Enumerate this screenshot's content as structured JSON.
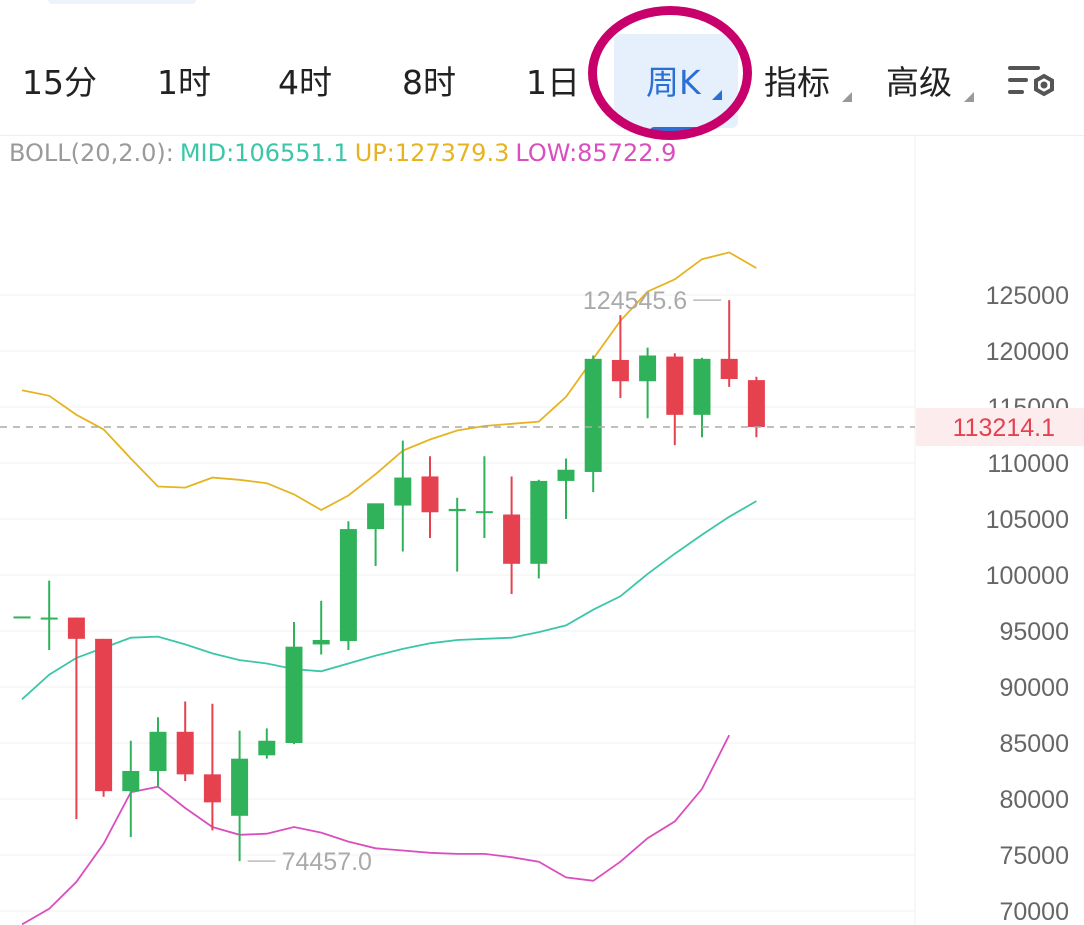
{
  "timeframes": {
    "items": [
      {
        "label": "15分"
      },
      {
        "label": "1时"
      },
      {
        "label": "4时"
      },
      {
        "label": "8时"
      },
      {
        "label": "1日"
      },
      {
        "label": "周K"
      }
    ],
    "indicators_label": "指标",
    "advanced_label": "高级"
  },
  "colors": {
    "up": "#2fb25a",
    "down": "#e5414f",
    "mid": "#3cc6a8",
    "upper": "#e6b422",
    "lower": "#d94fbf",
    "active": "#2a6fd6",
    "highlight_ring": "#c8006b",
    "current_price": "#e5414f"
  },
  "boll": {
    "label": "BOLL(20,2.0):",
    "mid": "MID:106551.1",
    "up": "UP:127379.3",
    "low": "LOW:85722.9"
  },
  "chart_data": {
    "type": "candlestick",
    "y_axis": {
      "range": [
        69000,
        131000
      ],
      "ticks": [
        70000,
        75000,
        80000,
        85000,
        90000,
        95000,
        100000,
        105000,
        110000,
        115000,
        120000,
        125000
      ],
      "tick_labels": [
        "70000",
        "75000",
        "80000",
        "85000",
        "90000",
        "95000",
        "100000",
        "105000",
        "110000",
        "115000",
        "120000",
        "125000"
      ]
    },
    "current_price": 113214.1,
    "current_price_label": "113214.1",
    "max_marker": {
      "value": 124545.6,
      "label": "124545.6"
    },
    "min_marker": {
      "value": 74457.0,
      "label": "74457.0"
    },
    "candles": [
      {
        "o": 96300,
        "h": 96300,
        "l": 96300,
        "c": 96300
      },
      {
        "o": 96200,
        "h": 99500,
        "l": 93300,
        "c": 96200
      },
      {
        "o": 96200,
        "h": 96200,
        "l": 78200,
        "c": 94300
      },
      {
        "o": 94300,
        "h": 94300,
        "l": 80200,
        "c": 80700
      },
      {
        "o": 80700,
        "h": 85200,
        "l": 76600,
        "c": 82500
      },
      {
        "o": 82500,
        "h": 87300,
        "l": 81100,
        "c": 86000
      },
      {
        "o": 86000,
        "h": 88700,
        "l": 81600,
        "c": 82200
      },
      {
        "o": 82200,
        "h": 88500,
        "l": 77200,
        "c": 79700
      },
      {
        "o": 78500,
        "h": 86100,
        "l": 74457,
        "c": 83600
      },
      {
        "o": 83900,
        "h": 86300,
        "l": 83600,
        "c": 85200
      },
      {
        "o": 85000,
        "h": 95800,
        "l": 84900,
        "c": 93600
      },
      {
        "o": 93800,
        "h": 97700,
        "l": 92900,
        "c": 94200
      },
      {
        "o": 94100,
        "h": 104800,
        "l": 93300,
        "c": 104100
      },
      {
        "o": 104100,
        "h": 106300,
        "l": 100800,
        "c": 106400
      },
      {
        "o": 106200,
        "h": 112000,
        "l": 102100,
        "c": 108700
      },
      {
        "o": 108800,
        "h": 110600,
        "l": 103300,
        "c": 105600
      },
      {
        "o": 105700,
        "h": 106900,
        "l": 100300,
        "c": 105900
      },
      {
        "o": 105600,
        "h": 110600,
        "l": 103300,
        "c": 105700
      },
      {
        "o": 105400,
        "h": 108800,
        "l": 98300,
        "c": 101000
      },
      {
        "o": 101000,
        "h": 108500,
        "l": 99700,
        "c": 108400
      },
      {
        "o": 108400,
        "h": 110400,
        "l": 105000,
        "c": 109400
      },
      {
        "o": 109200,
        "h": 119600,
        "l": 107400,
        "c": 119300
      },
      {
        "o": 119200,
        "h": 123200,
        "l": 115800,
        "c": 117300
      },
      {
        "o": 117300,
        "h": 120300,
        "l": 114000,
        "c": 119600
      },
      {
        "o": 119500,
        "h": 119800,
        "l": 111600,
        "c": 114300
      },
      {
        "o": 114300,
        "h": 119400,
        "l": 112300,
        "c": 119300
      },
      {
        "o": 119300,
        "h": 124545.6,
        "l": 116800,
        "c": 117500
      },
      {
        "o": 117400,
        "h": 117700,
        "l": 112300,
        "c": 113214.1
      }
    ],
    "bands": {
      "upper": [
        116500,
        116000,
        114300,
        113000,
        110400,
        107900,
        107800,
        108700,
        108500,
        108200,
        107200,
        105800,
        107100,
        109000,
        111100,
        112100,
        112900,
        113300,
        113500,
        113700,
        115900,
        119300,
        122700,
        125300,
        126400,
        128200,
        128800,
        127400
      ],
      "mid": [
        88900,
        91100,
        92600,
        93500,
        94400,
        94500,
        93800,
        93000,
        92400,
        92100,
        91600,
        91400,
        92100,
        92800,
        93400,
        93900,
        94200,
        94300,
        94400,
        94900,
        95500,
        96900,
        98100,
        100100,
        101900,
        103600,
        105200,
        106600
      ],
      "lower": [
        68800,
        70200,
        72600,
        76000,
        80600,
        81100,
        79200,
        77500,
        76800,
        76900,
        77500,
        77000,
        76200,
        75600,
        75400,
        75200,
        75100,
        75100,
        74800,
        74400,
        73000,
        72700,
        74400,
        76500,
        78000,
        80900,
        85700,
        null
      ]
    }
  }
}
